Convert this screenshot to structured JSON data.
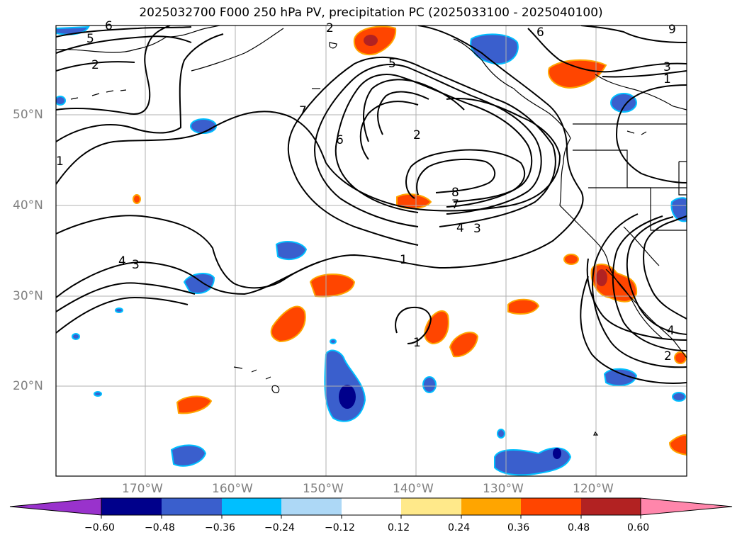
{
  "title": "2025032700 F000 250 hPa PV, precipitation PC (2025033100 - 2025040100)",
  "axes": {
    "lat_labels": [
      "50°N",
      "40°N",
      "30°N",
      "20°N"
    ],
    "lon_labels": [
      "170°W",
      "160°W",
      "150°W",
      "140°W",
      "130°W",
      "120°W"
    ]
  },
  "colorbar": {
    "ticks": [
      "−0.60",
      "−0.48",
      "−0.36",
      "−0.24",
      "−0.12",
      "0.12",
      "0.24",
      "0.36",
      "0.48",
      "0.60"
    ],
    "colors": [
      "#9932cc",
      "#00008b",
      "#3a5fcd",
      "#00bfff",
      "#add8f6",
      "#ffffff",
      "#ffe98a",
      "#ffa500",
      "#ff4500",
      "#b22222",
      "#ff86ab"
    ]
  },
  "contour_labels": [
    "6",
    "5",
    "2",
    "1",
    "2",
    "7",
    "9",
    "6",
    "5",
    "2",
    "8",
    "7",
    "4",
    "3",
    "1",
    "4",
    "3",
    "1",
    "4",
    "2",
    "3"
  ]
}
